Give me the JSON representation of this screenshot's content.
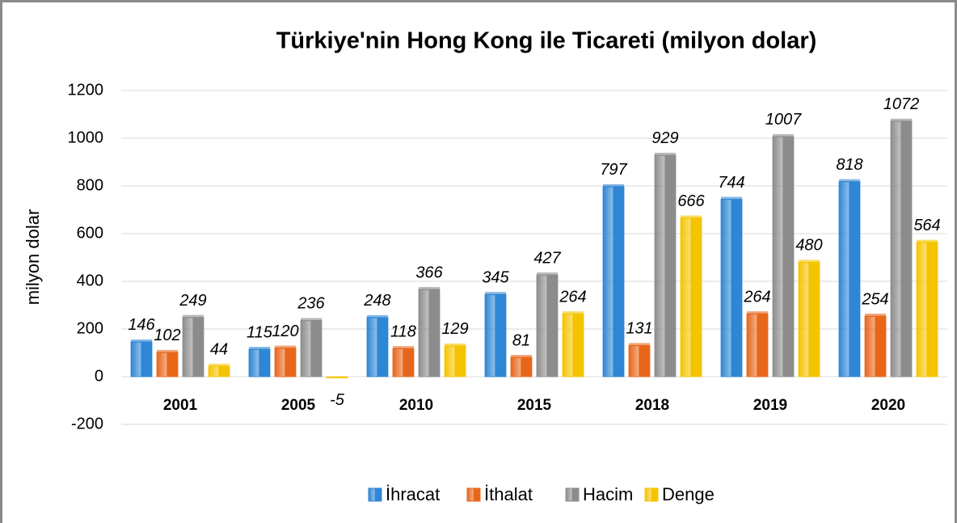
{
  "chart_data": {
    "type": "bar",
    "title": "Türkiye'nin Hong Kong ile Ticareti (milyon dolar)",
    "y_label": "milyon dolar",
    "categories": [
      "2001",
      "2005",
      "2010",
      "2015",
      "2018",
      "2019",
      "2020"
    ],
    "series": [
      {
        "name": "İhracat",
        "color": "#2e86d4",
        "values": [
          146,
          115,
          248,
          345,
          797,
          744,
          818
        ]
      },
      {
        "name": "İthalat",
        "color": "#e8661a",
        "values": [
          102,
          120,
          118,
          81,
          131,
          264,
          254
        ]
      },
      {
        "name": "Hacim",
        "color": "#8c8c8c",
        "values": [
          249,
          236,
          366,
          427,
          929,
          1007,
          1072
        ]
      },
      {
        "name": "Denge",
        "color": "#f5c400",
        "values": [
          44,
          -5,
          129,
          264,
          666,
          480,
          564
        ]
      }
    ],
    "ylim": [
      -200,
      1200
    ],
    "yticks": [
      -200,
      0,
      200,
      400,
      600,
      800,
      1000,
      1200
    ],
    "grid": true,
    "legend": "bottom"
  }
}
